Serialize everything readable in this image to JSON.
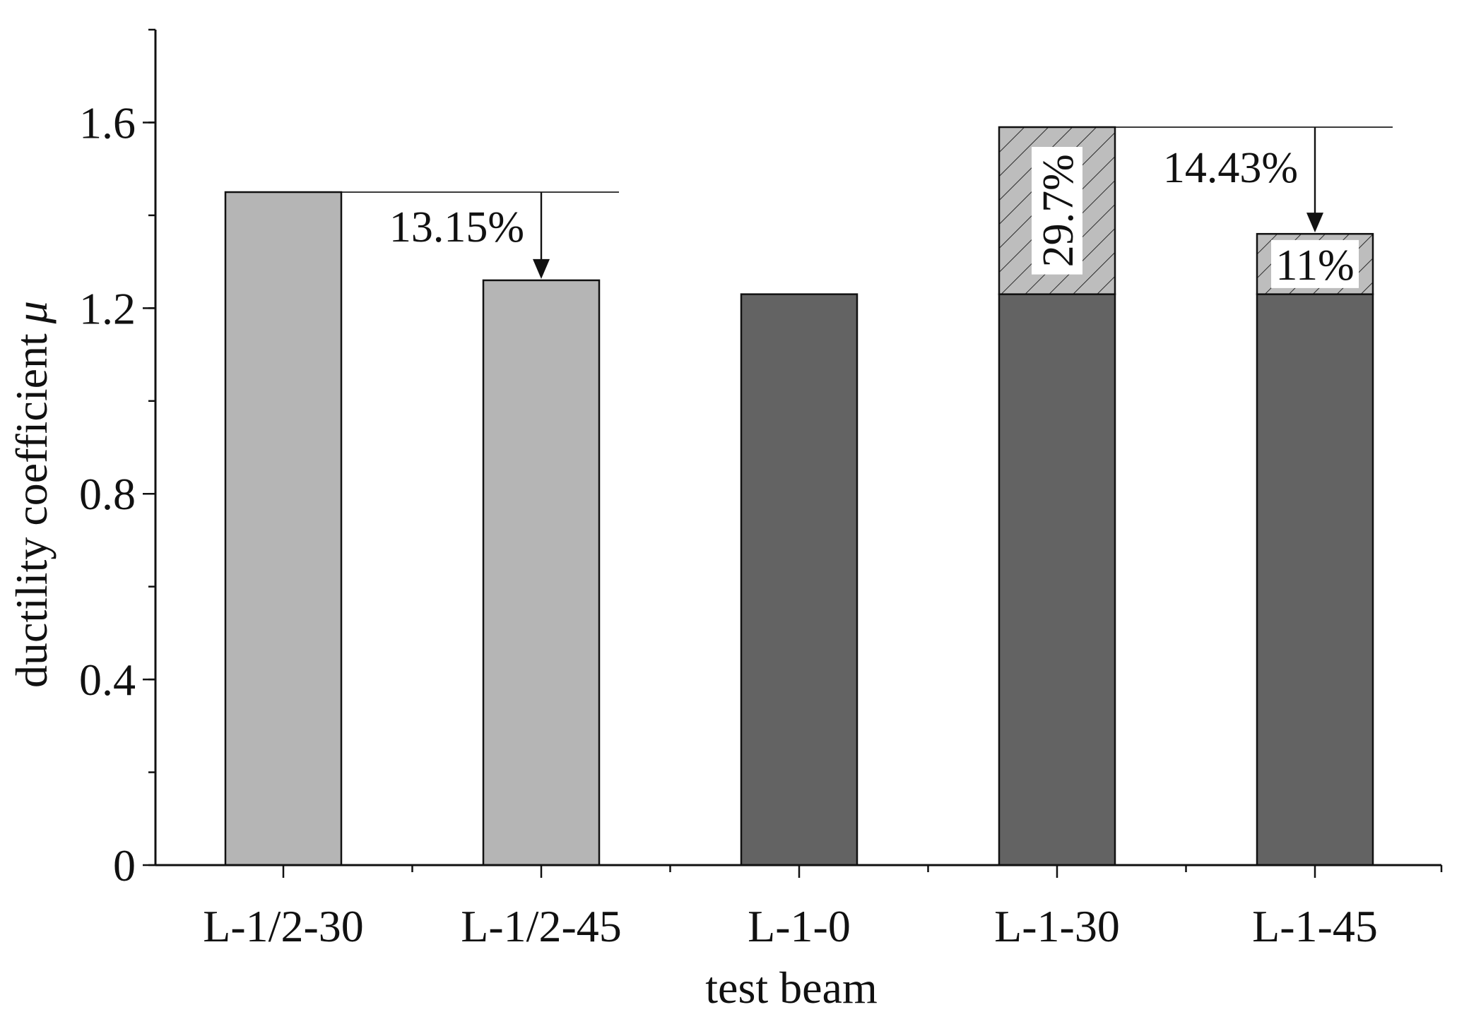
{
  "chart_data": {
    "type": "bar",
    "xlabel": "test beam",
    "ylabel": "ductility coefficient",
    "ylabel_symbol": "μ",
    "categories": [
      "L-1/2-30",
      "L-1/2-45",
      "L-1-0",
      "L-1-30",
      "L-1-45"
    ],
    "ylim": [
      0,
      1.8
    ],
    "yticks": [
      0,
      0.4,
      0.8,
      1.2,
      1.6
    ],
    "ytick_labels": [
      "0",
      "0.4",
      "0.8",
      "1.2",
      "1.6"
    ],
    "minor_tick_step": 0.2,
    "grid": false,
    "series": [
      {
        "values": [
          1.45,
          1.26,
          1.23,
          1.23,
          1.23
        ],
        "colors": [
          "#b5b5b5",
          "#b5b5b5",
          "#636363",
          "#636363",
          "#636363"
        ]
      },
      {
        "values": [
          0,
          0,
          0,
          0.36,
          0.13
        ],
        "color": "#bdbdbd",
        "pattern": "hatch"
      }
    ],
    "annotations": [
      {
        "text": "13.15%",
        "from": 0,
        "to": 1,
        "reference_value": 1.45,
        "target_value": 1.26
      },
      {
        "text": "14.43%",
        "from": 3,
        "to": 4,
        "reference_value": 1.59,
        "target_value": 1.36
      }
    ],
    "bar_labels": [
      {
        "text": "29.7%",
        "category": 3,
        "rotated": true
      },
      {
        "text": "11%",
        "category": 4,
        "rotated": false
      }
    ]
  }
}
